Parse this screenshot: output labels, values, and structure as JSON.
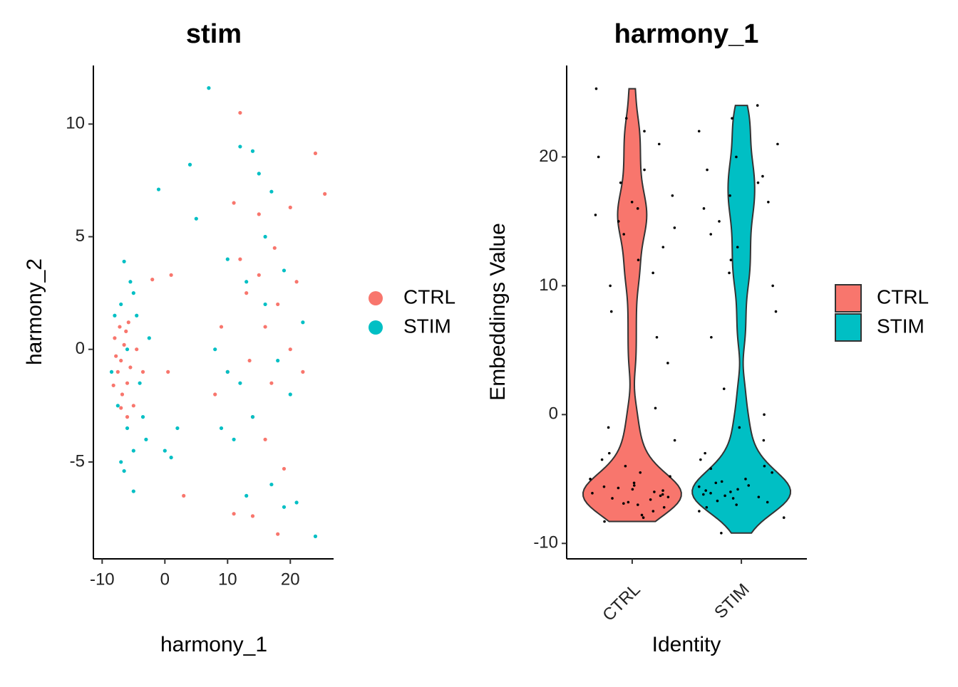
{
  "chart_data": [
    {
      "type": "scatter",
      "title": "stim",
      "xlabel": "harmony_1",
      "ylabel": "harmony_2",
      "xlim": [
        -11.4,
        26.9
      ],
      "ylim": [
        -9.3,
        12.6
      ],
      "xticks": [
        -10,
        0,
        10,
        20
      ],
      "yticks": [
        -5,
        0,
        5,
        10
      ],
      "legend": "right",
      "series": [
        {
          "name": "CTRL",
          "color": "#F8766D",
          "x": [
            -7,
            -6.5,
            -7.5,
            -6,
            -8,
            -7.2,
            -5.5,
            -6.8,
            -7.8,
            -6.2,
            -5,
            -8.2,
            -6,
            -4.5,
            -7,
            -5.8,
            -3.5,
            -2,
            1,
            3,
            0.5,
            12,
            15,
            18,
            20,
            10,
            14,
            16,
            13,
            17,
            19,
            11,
            14,
            18,
            22,
            24,
            25.5,
            12,
            16,
            9,
            15,
            20,
            8,
            13.5,
            17.5,
            11,
            21
          ],
          "y": [
            -0.5,
            0.2,
            -1,
            -1.5,
            0.5,
            1,
            -0.8,
            -2,
            -0.3,
            0.8,
            -2.5,
            -1.6,
            -3,
            0,
            -2.6,
            1.2,
            -1,
            3.1,
            3.3,
            -6.5,
            -1,
            4,
            6,
            2,
            6.3,
            -1,
            -3,
            1,
            2.5,
            -1.5,
            -5.3,
            -7.3,
            -7.4,
            -8.2,
            -1,
            8.7,
            6.9,
            10.5,
            -4,
            1,
            3.3,
            0,
            -2,
            -0.5,
            4.5,
            6.5,
            3
          ]
        },
        {
          "name": "STIM",
          "color": "#00BFC4",
          "x": [
            -7,
            -6.5,
            -8,
            -5,
            -6,
            -5,
            -7,
            -6.5,
            -5,
            -8.5,
            -4.5,
            -7.5,
            -3.5,
            -3,
            -2.5,
            0,
            -1,
            1,
            -6,
            -4,
            -5.5,
            2,
            7,
            12,
            14,
            4,
            5,
            15,
            17,
            10,
            13,
            16,
            18,
            20,
            22,
            11,
            14,
            17,
            19,
            21,
            24,
            13,
            10,
            16,
            8,
            19,
            12,
            9
          ],
          "y": [
            2,
            3.9,
            1.5,
            2.5,
            -3.5,
            -4.5,
            -5,
            -5.4,
            -6.3,
            -1,
            1.5,
            -2.5,
            -3,
            -4,
            0.5,
            -4.5,
            7.1,
            -4.8,
            0,
            -1.5,
            3,
            -3.5,
            11.6,
            9,
            8.8,
            8.2,
            5.8,
            7.8,
            7,
            4,
            3,
            2,
            -0.5,
            -2,
            1.2,
            -4,
            -3,
            -6,
            -7,
            -6.8,
            -8.3,
            -6.5,
            -1,
            5,
            0,
            3.5,
            -1.5,
            -3.5
          ]
        }
      ]
    },
    {
      "type": "violin",
      "title": "harmony_1",
      "xlabel": "Identity",
      "ylabel": "Embeddings Value",
      "categories": [
        "CTRL",
        "STIM"
      ],
      "ylim": [
        -11.2,
        27.1
      ],
      "yticks": [
        -10,
        0,
        10,
        20
      ],
      "legend": "right",
      "series": [
        {
          "name": "CTRL",
          "color": "#F8766D",
          "values": [
            -8.3,
            -7.5,
            -7,
            -6.8,
            -6.5,
            -6.3,
            -6,
            -5.8,
            -5.5,
            -5.3,
            -5,
            -4.5,
            -7.8,
            -6.9,
            -6.2,
            -5.7,
            -4,
            -3,
            -2,
            -6.6,
            -7.2,
            -5.9,
            -6.1,
            -8,
            -4.8,
            -1,
            0.5,
            -3.5,
            -6.4,
            -5.6,
            15,
            16,
            18,
            14,
            12,
            20,
            22,
            17,
            10,
            8,
            6,
            13,
            19,
            15.5,
            16.5,
            21,
            11,
            25.3,
            23,
            14.5,
            4
          ]
        },
        {
          "name": "STIM",
          "color": "#00BFC4",
          "values": [
            -9.2,
            -8,
            -7.2,
            -7,
            -6.8,
            -6.5,
            -6.3,
            -6.1,
            -6,
            -5.8,
            -5.6,
            -5.3,
            -5,
            -4.5,
            -4,
            -3.5,
            -3,
            -2,
            -1,
            -6.7,
            -5.9,
            -6.2,
            -7.5,
            -5.5,
            -4.2,
            0,
            -6.4,
            -5.2,
            16,
            18,
            20,
            22,
            14,
            12,
            10,
            17,
            15,
            19,
            21,
            13,
            24,
            8,
            6,
            2,
            16.5,
            18.5,
            11,
            23
          ]
        }
      ]
    }
  ]
}
